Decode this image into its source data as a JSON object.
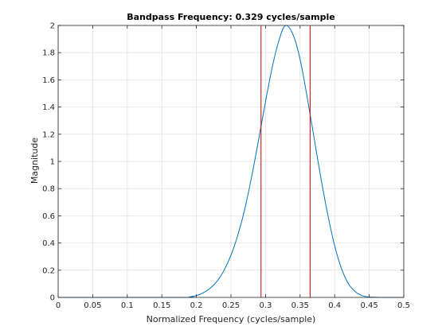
{
  "chart_data": {
    "type": "line",
    "title": "Bandpass Frequency: 0.329 cycles/sample",
    "xlabel": "Normalized Frequency (cycles/sample)",
    "ylabel": "Magnitude",
    "xlim": [
      0,
      0.5
    ],
    "ylim": [
      0,
      2
    ],
    "xticks": [
      0,
      0.05,
      0.1,
      0.15,
      0.2,
      0.25,
      0.3,
      0.35,
      0.4,
      0.45,
      0.5
    ],
    "xtick_labels": [
      "0",
      "0.05",
      "0.1",
      "0.15",
      "0.2",
      "0.25",
      "0.3",
      "0.35",
      "0.4",
      "0.45",
      "0.5"
    ],
    "yticks": [
      0,
      0.2,
      0.4,
      0.6,
      0.8,
      1,
      1.2,
      1.4,
      1.6,
      1.8,
      2
    ],
    "ytick_labels": [
      "0",
      "0.2",
      "0.4",
      "0.6",
      "0.8",
      "1",
      "1.2",
      "1.4",
      "1.6",
      "1.8",
      "2"
    ],
    "grid": true,
    "series": [
      {
        "color": "#0072bd",
        "x": [
          0,
          0.18,
          0.19,
          0.2,
          0.21,
          0.22,
          0.23,
          0.24,
          0.25,
          0.26,
          0.27,
          0.28,
          0.29,
          0.3,
          0.31,
          0.32,
          0.329,
          0.34,
          0.35,
          0.36,
          0.37,
          0.38,
          0.39,
          0.4,
          0.41,
          0.42,
          0.43,
          0.44,
          0.45,
          0.46,
          0.47,
          0.5
        ],
        "y": [
          0,
          0,
          0.004,
          0.014,
          0.034,
          0.068,
          0.12,
          0.2,
          0.31,
          0.46,
          0.65,
          0.89,
          1.16,
          1.44,
          1.7,
          1.9,
          2.0,
          1.93,
          1.75,
          1.48,
          1.18,
          0.88,
          0.61,
          0.38,
          0.21,
          0.1,
          0.042,
          0.013,
          0.003,
          0.001,
          0,
          0
        ]
      }
    ],
    "vertical_lines": [
      {
        "x": 0.2935,
        "color": "#cc0000"
      },
      {
        "x": 0.3645,
        "color": "#cc0000"
      }
    ]
  }
}
